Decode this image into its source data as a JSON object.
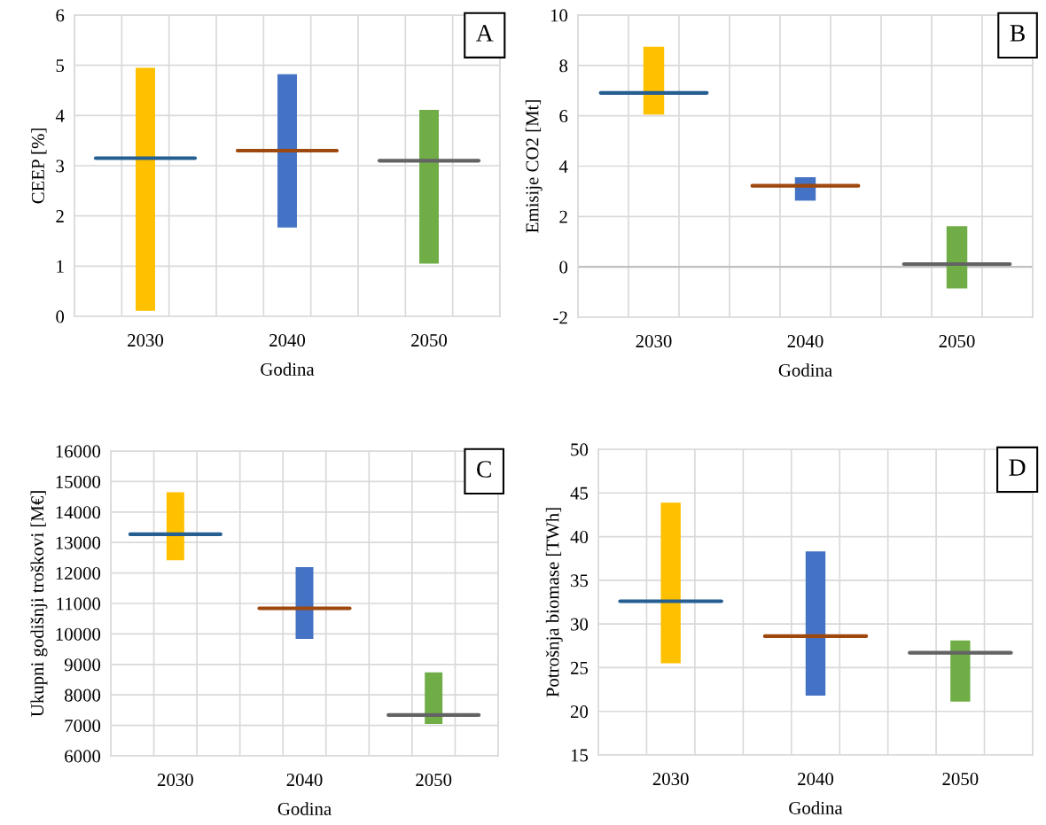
{
  "chart_data": [
    {
      "type": "bar",
      "xlabel": "Godina",
      "ylabel": "CEEP [%]",
      "xlim": [
        2025,
        2055
      ],
      "xticks": [
        2030,
        2040,
        2050
      ],
      "series": [
        {
          "x": [
            2030,
            2040,
            2050
          ],
          "base": [
            0.11,
            1.77,
            1.05
          ],
          "values": [
            4.84,
            3.05,
            3.06
          ],
          "colors": [
            "#ffc000",
            "#4472c4",
            "#70ad47"
          ]
        },
        {
          "type": "line",
          "x": [
            2026.5,
            2033.5
          ],
          "values": [
            3.15,
            3.15
          ],
          "color": "#255e91"
        },
        {
          "type": "line",
          "x": [
            2036.5,
            2043.5
          ],
          "values": [
            3.3,
            3.3
          ],
          "color": "#9e480e"
        },
        {
          "type": "line",
          "x": [
            2046.5,
            2053.5
          ],
          "values": [
            3.1,
            3.1
          ],
          "color": "#636363"
        }
      ],
      "ylim": [
        0,
        6
      ],
      "yticks": [
        0,
        1,
        2,
        3,
        4,
        5,
        6
      ],
      "grid": true,
      "annotations": [
        "A"
      ]
    },
    {
      "type": "bar",
      "xlabel": "Godina",
      "ylabel": "Emisije CO2 [Mt]",
      "xlim": [
        2025,
        2055
      ],
      "xticks": [
        2030,
        2040,
        2050
      ],
      "series": [
        {
          "x": [
            2030,
            2040,
            2050
          ],
          "base": [
            6.05,
            2.63,
            -0.86
          ],
          "values": [
            2.69,
            0.93,
            2.48
          ],
          "colors": [
            "#ffc000",
            "#4472c4",
            "#70ad47"
          ]
        },
        {
          "type": "line",
          "x": [
            2026.5,
            2033.5
          ],
          "values": [
            6.91,
            6.91
          ],
          "color": "#255e91"
        },
        {
          "type": "line",
          "x": [
            2036.5,
            2043.5
          ],
          "values": [
            3.22,
            3.22
          ],
          "color": "#9e480e"
        },
        {
          "type": "line",
          "x": [
            2046.5,
            2053.5
          ],
          "values": [
            0.11,
            0.11
          ],
          "color": "#636363"
        }
      ],
      "ylim": [
        -2,
        10
      ],
      "yticks": [
        {
          "value": -2,
          "label": "-2"
        },
        0,
        2,
        4,
        6,
        8,
        10
      ],
      "grid": true,
      "ref_lines": [
        {
          "axis": "y",
          "value": 0,
          "color": "#bfbfbf"
        }
      ],
      "annotations": [
        "B"
      ]
    },
    {
      "type": "bar",
      "xlabel": "Godina",
      "ylabel": "Ukupni godišnji troškovi [M€]",
      "xlim": [
        2025,
        2055
      ],
      "xticks": [
        2030,
        2040,
        2050
      ],
      "series": [
        {
          "x": [
            2030,
            2040,
            2050
          ],
          "base": [
            12420,
            9840,
            7050
          ],
          "values": [
            2230,
            2350,
            1690
          ],
          "colors": [
            "#ffc000",
            "#4472c4",
            "#70ad47"
          ]
        },
        {
          "type": "line",
          "x": [
            2026.5,
            2033.5
          ],
          "values": [
            13270,
            13270
          ],
          "color": "#255e91"
        },
        {
          "type": "line",
          "x": [
            2036.5,
            2043.5
          ],
          "values": [
            10840,
            10840
          ],
          "color": "#9e480e"
        },
        {
          "type": "line",
          "x": [
            2046.5,
            2053.5
          ],
          "values": [
            7340,
            7340
          ],
          "color": "#636363"
        }
      ],
      "ylim": [
        6000,
        16000
      ],
      "yticks": [
        6000,
        7000,
        8000,
        9000,
        10000,
        11000,
        12000,
        13000,
        14000,
        15000,
        16000
      ],
      "grid": true,
      "annotations": [
        "C"
      ]
    },
    {
      "type": "bar",
      "xlabel": "Godina",
      "ylabel": "Potrošnja biomase [TWh]",
      "xlim": [
        2025,
        2055
      ],
      "xticks": [
        2030,
        2040,
        2050
      ],
      "series": [
        {
          "x": [
            2030,
            2040,
            2050
          ],
          "base": [
            25.5,
            21.8,
            21.1
          ],
          "values": [
            18.4,
            16.5,
            7.0
          ],
          "colors": [
            "#ffc000",
            "#4472c4",
            "#70ad47"
          ]
        },
        {
          "type": "line",
          "x": [
            2026.5,
            2033.5
          ],
          "values": [
            32.6,
            32.6
          ],
          "color": "#255e91"
        },
        {
          "type": "line",
          "x": [
            2036.5,
            2043.5
          ],
          "values": [
            28.6,
            28.6
          ],
          "color": "#9e480e"
        },
        {
          "type": "line",
          "x": [
            2046.5,
            2053.5
          ],
          "values": [
            26.7,
            26.7
          ],
          "color": "#636363"
        }
      ],
      "ylim": [
        15,
        50
      ],
      "yticks": [
        15,
        20,
        25,
        30,
        35,
        40,
        45,
        50
      ],
      "grid": true,
      "annotations": [
        "D"
      ]
    }
  ]
}
